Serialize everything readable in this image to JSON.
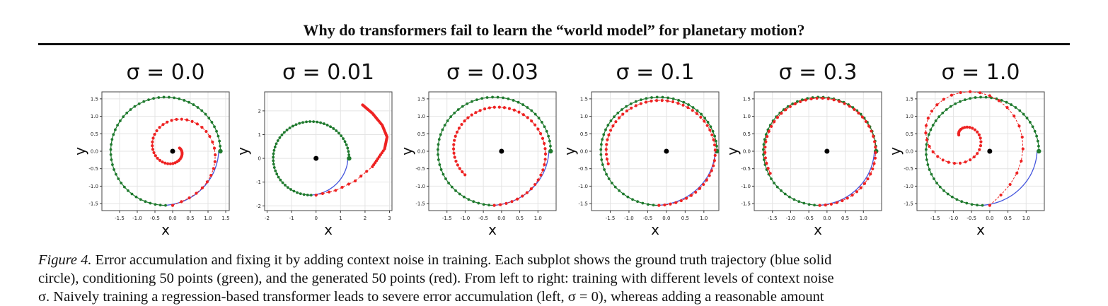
{
  "section_title": "Why do transformers fail to learn the “world model” for planetary motion?",
  "caption": {
    "label": "Figure 4.",
    "line1": "Error accumulation and fixing it by adding context noise in training. Each subplot shows the ground truth trajectory (blue solid",
    "line2": "circle), conditioning 50 points (green), and the generated 50 points (red). From left to right: training with different levels of context noise",
    "line3": "σ. Naively training a regression-based transformer leads to severe error accumulation (left, σ = 0), whereas adding a reasonable amount"
  },
  "colors": {
    "ground_truth": "#4455dd",
    "conditioning": "#1f7a2e",
    "generated": "#ee2222",
    "center": "#000000",
    "grid": "#e4e4e4"
  },
  "chart_data": [
    {
      "type": "scatter",
      "title": "σ = 0.0",
      "xlabel": "x",
      "ylabel": "y",
      "xlim": [
        -2.0,
        1.6
      ],
      "ylim": [
        -1.7,
        1.7
      ],
      "xticks": [
        "-1.5",
        "-1.0",
        "-0.5",
        "0.0",
        "0.5",
        "1.0",
        "1.5"
      ],
      "xtick_values": [
        -1.5,
        -1.0,
        -0.5,
        0.0,
        0.5,
        1.0,
        1.5
      ],
      "yticks": [
        "-1.5",
        "-1.0",
        "-0.5",
        "0.0",
        "0.5",
        "1.0",
        "1.5"
      ],
      "ytick_values": [
        -1.5,
        -1.0,
        -0.5,
        0.0,
        0.5,
        1.0,
        1.5
      ],
      "grid": true,
      "generated_path": {
        "kind": "spiral",
        "start": [
          0.0,
          -1.55
        ],
        "turns": 1.3,
        "r_end": 0.15,
        "center": [
          0.05,
          0.05
        ]
      }
    },
    {
      "type": "scatter",
      "title": "σ = 0.01",
      "xlabel": "x",
      "ylabel": "y",
      "xlim": [
        -2.1,
        3.1
      ],
      "ylim": [
        -2.2,
        2.8
      ],
      "xticks": [
        "-2",
        "-1",
        "0",
        "1",
        "2",
        "3"
      ],
      "xtick_values": [
        -2,
        -1,
        0,
        1,
        2,
        3
      ],
      "yticks": [
        "-2",
        "-1",
        "0",
        "1",
        "2"
      ],
      "ytick_values": [
        -2,
        -1,
        0,
        1,
        2
      ],
      "grid": true,
      "generated_path": {
        "kind": "escape",
        "start": [
          0.0,
          -1.55
        ],
        "points": [
          [
            0.0,
            -1.55
          ],
          [
            0.8,
            -1.35
          ],
          [
            1.6,
            -0.95
          ],
          [
            2.3,
            -0.35
          ],
          [
            2.8,
            0.4
          ],
          [
            2.9,
            0.9
          ],
          [
            2.7,
            1.4
          ],
          [
            2.3,
            1.9
          ],
          [
            1.9,
            2.25
          ]
        ]
      }
    },
    {
      "type": "scatter",
      "title": "σ = 0.03",
      "xlabel": "x",
      "ylabel": "y",
      "xlim": [
        -2.0,
        1.5
      ],
      "ylim": [
        -1.7,
        1.7
      ],
      "xticks": [
        "-1.5",
        "-1.0",
        "-0.5",
        "0.0",
        "0.5",
        "1.0"
      ],
      "xtick_values": [
        -1.5,
        -1.0,
        -0.5,
        0.0,
        0.5,
        1.0
      ],
      "yticks": [
        "-1.5",
        "-1.0",
        "-0.5",
        "0.0",
        "0.5",
        "1.0",
        "1.5"
      ],
      "ytick_values": [
        -1.5,
        -1.0,
        -0.5,
        0.0,
        0.5,
        1.0,
        1.5
      ],
      "grid": true,
      "generated_path": {
        "kind": "inner_arc",
        "start_angle": -90,
        "sweep": 310,
        "r_start": 1.55,
        "r_end": 1.05
      }
    },
    {
      "type": "scatter",
      "title": "σ = 0.1",
      "xlabel": "x",
      "ylabel": "y",
      "xlim": [
        -2.0,
        1.4
      ],
      "ylim": [
        -1.7,
        1.7
      ],
      "xticks": [
        "-1.5",
        "-1.0",
        "-0.5",
        "0.0",
        "0.5",
        "1.0"
      ],
      "xtick_values": [
        -1.5,
        -1.0,
        -0.5,
        0.0,
        0.5,
        1.0
      ],
      "yticks": [
        "-1.5",
        "-1.0",
        "-0.5",
        "0.0",
        "0.5",
        "1.0",
        "1.5"
      ],
      "ytick_values": [
        -1.5,
        -1.0,
        -0.5,
        0.0,
        0.5,
        1.0,
        1.5
      ],
      "grid": true,
      "generated_path": {
        "kind": "inner_arc",
        "start_angle": -90,
        "sweep": 285,
        "r_start": 1.55,
        "r_end": 1.4
      }
    },
    {
      "type": "scatter",
      "title": "σ = 0.3",
      "xlabel": "x",
      "ylabel": "y",
      "xlim": [
        -2.0,
        1.5
      ],
      "ylim": [
        -1.7,
        1.7
      ],
      "xticks": [
        "-1.5",
        "-1.0",
        "-0.5",
        "0.0",
        "0.5",
        "1.0"
      ],
      "xtick_values": [
        -1.5,
        -1.0,
        -0.5,
        0.0,
        0.5,
        1.0
      ],
      "yticks": [
        "-1.5",
        "-1.0",
        "-0.5",
        "0.0",
        "0.5",
        "1.0",
        "1.5"
      ],
      "ytick_values": [
        -1.5,
        -1.0,
        -0.5,
        0.0,
        0.5,
        1.0,
        1.5
      ],
      "grid": true,
      "generated_path": {
        "kind": "inner_arc",
        "start_angle": -90,
        "sweep": 295,
        "r_start": 1.55,
        "r_end": 1.5
      }
    },
    {
      "type": "scatter",
      "title": "σ = 1.0",
      "xlabel": "x",
      "ylabel": "y",
      "xlim": [
        -2.0,
        1.5
      ],
      "ylim": [
        -1.7,
        1.7
      ],
      "xticks": [
        "-1.5",
        "-1.0",
        "-0.5",
        "0.0",
        "0.5",
        "1.0"
      ],
      "xtick_values": [
        -1.5,
        -1.0,
        -0.5,
        0.0,
        0.5,
        1.0
      ],
      "yticks": [
        "-1.5",
        "-1.0",
        "-0.5",
        "0.0",
        "0.5",
        "1.0",
        "1.5"
      ],
      "ytick_values": [
        -1.5,
        -1.0,
        -0.5,
        0.0,
        0.5,
        1.0,
        1.5
      ],
      "grid": true,
      "generated_path": {
        "kind": "spiral",
        "start": [
          0.0,
          -1.55
        ],
        "turns": 1.6,
        "r_end": 0.12,
        "center": [
          -0.75,
          0.4
        ]
      }
    }
  ]
}
